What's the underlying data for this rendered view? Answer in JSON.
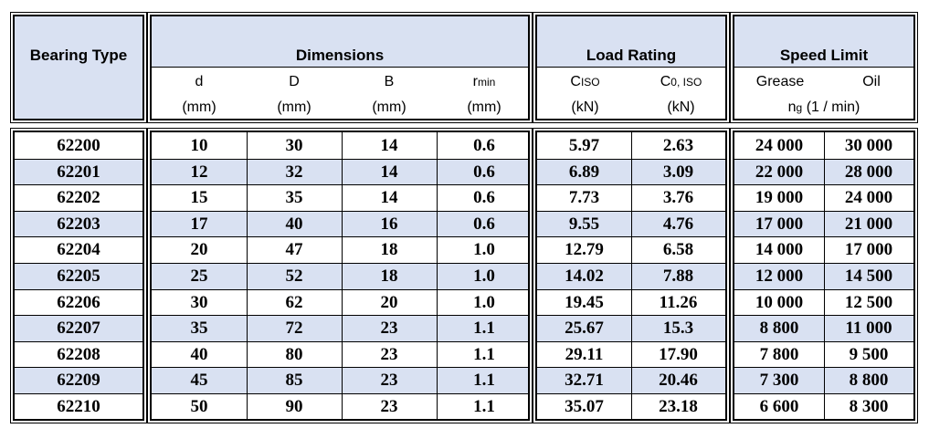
{
  "header": {
    "bearing_type": "Bearing Type",
    "dimensions": "Dimensions",
    "load_rating": "Load Rating",
    "speed_limit": "Speed Limit",
    "cols": {
      "d": "d",
      "D": "D",
      "B": "B",
      "r": "r",
      "r_sub": "min",
      "c": "C",
      "c_sub": "ISO",
      "c0": "C",
      "c0_sub": "0, ISO",
      "grease": "Grease",
      "oil": "Oil",
      "unit_mm": "(mm)",
      "unit_kn": "(kN)",
      "ng": "n",
      "ng_sub": "g",
      "ng_unit": "(1 / min)"
    }
  },
  "rows": [
    {
      "type": "62200",
      "d": "10",
      "D": "30",
      "B": "14",
      "r": "0.6",
      "c": "5.97",
      "c0": "2.63",
      "grease": "24 000",
      "oil": "30 000"
    },
    {
      "type": "62201",
      "d": "12",
      "D": "32",
      "B": "14",
      "r": "0.6",
      "c": "6.89",
      "c0": "3.09",
      "grease": "22 000",
      "oil": "28 000"
    },
    {
      "type": "62202",
      "d": "15",
      "D": "35",
      "B": "14",
      "r": "0.6",
      "c": "7.73",
      "c0": "3.76",
      "grease": "19 000",
      "oil": "24 000"
    },
    {
      "type": "62203",
      "d": "17",
      "D": "40",
      "B": "16",
      "r": "0.6",
      "c": "9.55",
      "c0": "4.76",
      "grease": "17 000",
      "oil": "21 000"
    },
    {
      "type": "62204",
      "d": "20",
      "D": "47",
      "B": "18",
      "r": "1.0",
      "c": "12.79",
      "c0": "6.58",
      "grease": "14 000",
      "oil": "17 000"
    },
    {
      "type": "62205",
      "d": "25",
      "D": "52",
      "B": "18",
      "r": "1.0",
      "c": "14.02",
      "c0": "7.88",
      "grease": "12 000",
      "oil": "14 500"
    },
    {
      "type": "62206",
      "d": "30",
      "D": "62",
      "B": "20",
      "r": "1.0",
      "c": "19.45",
      "c0": "11.26",
      "grease": "10 000",
      "oil": "12 500"
    },
    {
      "type": "62207",
      "d": "35",
      "D": "72",
      "B": "23",
      "r": "1.1",
      "c": "25.67",
      "c0": "15.3",
      "grease": "8 800",
      "oil": "11 000"
    },
    {
      "type": "62208",
      "d": "40",
      "D": "80",
      "B": "23",
      "r": "1.1",
      "c": "29.11",
      "c0": "17.90",
      "grease": "7 800",
      "oil": "9 500"
    },
    {
      "type": "62209",
      "d": "45",
      "D": "85",
      "B": "23",
      "r": "1.1",
      "c": "32.71",
      "c0": "20.46",
      "grease": "7 300",
      "oil": "8 800"
    },
    {
      "type": "62210",
      "d": "50",
      "D": "90",
      "B": "23",
      "r": "1.1",
      "c": "35.07",
      "c0": "23.18",
      "grease": "6 600",
      "oil": "8 300"
    }
  ],
  "colors": {
    "header_fill": "#d9e1f2",
    "row_shade": "#d9e1f2",
    "border": "#000000"
  }
}
